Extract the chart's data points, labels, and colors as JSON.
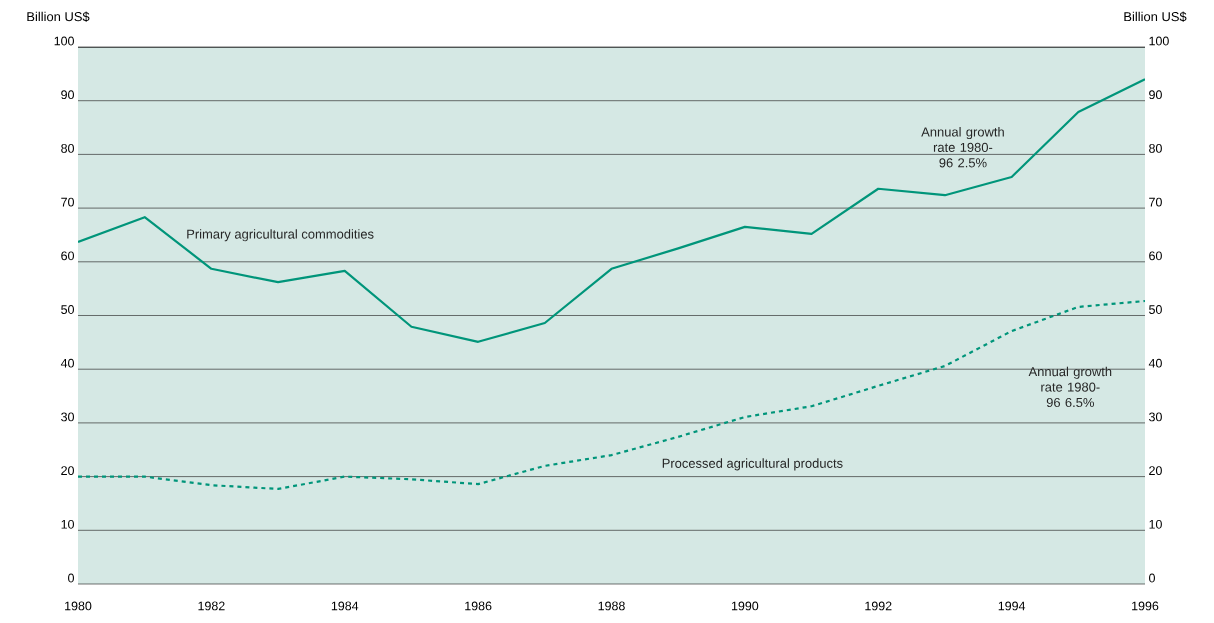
{
  "chart_data": {
    "type": "line",
    "x": [
      1980,
      1981,
      1982,
      1983,
      1984,
      1985,
      1986,
      1987,
      1988,
      1989,
      1990,
      1991,
      1992,
      1993,
      1994,
      1995,
      1996
    ],
    "series": [
      {
        "name": "Primary agricultural commodities",
        "color": "#00957a",
        "line_style": "solid",
        "values": [
          63.7,
          68.3,
          58.7,
          56.2,
          58.3,
          47.9,
          45.1,
          48.6,
          58.7,
          62.5,
          66.5,
          65.2,
          73.6,
          72.4,
          75.8,
          87.9,
          94
        ]
      },
      {
        "name": "Processed agricultural products",
        "color": "#00957a",
        "line_style": "dotted",
        "values": [
          20,
          20,
          18.4,
          17.7,
          20,
          19.5,
          18.6,
          22,
          24,
          27.4,
          31.1,
          33.1,
          36.9,
          40.6,
          47.1,
          51.6,
          52.7
        ]
      }
    ],
    "ylabel": "Billion US$",
    "y2label": "Billion US$",
    "xlim": [
      1980,
      1996
    ],
    "xticks": [
      1980,
      1982,
      1984,
      1986,
      1988,
      1990,
      1992,
      1994,
      1996
    ],
    "ylim": [
      0,
      100
    ],
    "yticks": [
      0,
      10,
      20,
      30,
      40,
      50,
      60,
      70,
      80,
      90,
      100
    ],
    "y2lim": [
      0,
      100
    ],
    "y2ticks": [
      0,
      10,
      20,
      30,
      40,
      50,
      60,
      70,
      80,
      90,
      100
    ],
    "grid": "y",
    "legend": false,
    "annotations": [
      "Annual growth rate 1980-96 2.5%",
      "Annual growth rate 1980-96 6.5%"
    ]
  }
}
